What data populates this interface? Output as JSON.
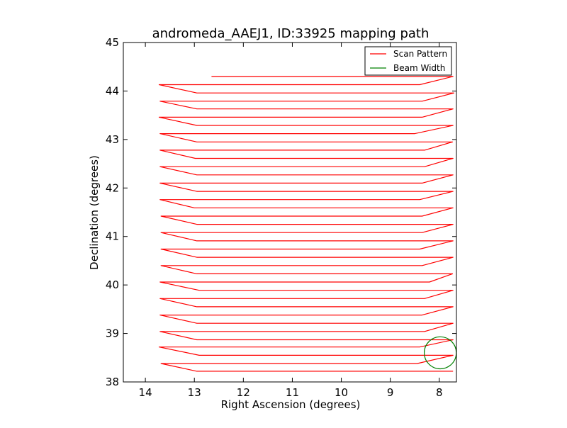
{
  "chart_data": {
    "type": "line",
    "title": "andromeda_AAEJ1, ID:33925 mapping path",
    "xlabel": "Right Ascension (degrees)",
    "ylabel": "Declination (degrees)",
    "xlim": [
      14.45,
      7.65
    ],
    "ylim": [
      38,
      45
    ],
    "x_ticks": [
      "14",
      "13",
      "12",
      "11",
      "10",
      "9",
      "8"
    ],
    "x_tick_values": [
      14,
      13,
      12,
      11,
      10,
      9,
      8
    ],
    "y_ticks": [
      "38",
      "39",
      "40",
      "41",
      "42",
      "43",
      "44",
      "45"
    ],
    "y_tick_values": [
      38,
      39,
      40,
      41,
      42,
      43,
      44,
      45
    ],
    "grid": false,
    "legend_position": "top-right",
    "legend": [
      {
        "label": "Scan Pattern",
        "color": "#ff0000"
      },
      {
        "label": "Beam Width",
        "color": "#008000"
      }
    ],
    "series": [
      {
        "name": "Scan Pattern",
        "color": "#ff0000",
        "points": [
          [
            12.65,
            44.3
          ],
          [
            7.72,
            44.3
          ],
          [
            8.4,
            44.13
          ],
          [
            13.72,
            44.13
          ],
          [
            12.95,
            43.96
          ],
          [
            7.7,
            43.96
          ],
          [
            8.35,
            43.79
          ],
          [
            13.7,
            43.79
          ],
          [
            12.95,
            43.63
          ],
          [
            7.72,
            43.63
          ],
          [
            8.35,
            43.46
          ],
          [
            13.72,
            43.46
          ],
          [
            12.95,
            43.29
          ],
          [
            7.72,
            43.29
          ],
          [
            8.5,
            43.12
          ],
          [
            13.7,
            43.12
          ],
          [
            12.95,
            42.95
          ],
          [
            7.73,
            42.95
          ],
          [
            8.3,
            42.78
          ],
          [
            13.7,
            42.78
          ],
          [
            12.98,
            42.61
          ],
          [
            7.72,
            42.61
          ],
          [
            8.3,
            42.44
          ],
          [
            13.7,
            42.44
          ],
          [
            12.95,
            42.27
          ],
          [
            7.72,
            42.27
          ],
          [
            8.35,
            42.1
          ],
          [
            13.7,
            42.1
          ],
          [
            12.95,
            41.93
          ],
          [
            7.72,
            41.93
          ],
          [
            8.4,
            41.76
          ],
          [
            13.7,
            41.76
          ],
          [
            13.0,
            41.59
          ],
          [
            7.72,
            41.59
          ],
          [
            8.35,
            41.42
          ],
          [
            13.68,
            41.42
          ],
          [
            12.95,
            41.25
          ],
          [
            7.72,
            41.25
          ],
          [
            8.35,
            41.08
          ],
          [
            13.68,
            41.08
          ],
          [
            12.95,
            40.91
          ],
          [
            7.72,
            40.91
          ],
          [
            8.4,
            40.74
          ],
          [
            13.68,
            40.74
          ],
          [
            12.95,
            40.57
          ],
          [
            7.72,
            40.57
          ],
          [
            8.35,
            40.4
          ],
          [
            13.68,
            40.4
          ],
          [
            12.95,
            40.23
          ],
          [
            7.73,
            40.23
          ],
          [
            8.2,
            40.06
          ],
          [
            13.7,
            40.06
          ],
          [
            12.9,
            39.89
          ],
          [
            7.72,
            39.89
          ],
          [
            8.3,
            39.72
          ],
          [
            13.7,
            39.72
          ],
          [
            12.95,
            39.55
          ],
          [
            7.72,
            39.55
          ],
          [
            8.35,
            39.38
          ],
          [
            13.7,
            39.38
          ],
          [
            12.95,
            39.21
          ],
          [
            7.72,
            39.21
          ],
          [
            8.3,
            39.04
          ],
          [
            13.7,
            39.04
          ],
          [
            12.95,
            38.87
          ],
          [
            7.72,
            38.87
          ],
          [
            8.4,
            38.72
          ],
          [
            13.72,
            38.72
          ],
          [
            12.9,
            38.55
          ],
          [
            7.72,
            38.55
          ],
          [
            8.45,
            38.38
          ],
          [
            13.68,
            38.38
          ],
          [
            12.95,
            38.22
          ],
          [
            7.72,
            38.22
          ]
        ]
      },
      {
        "name": "Beam Width",
        "color": "#008000",
        "circle": {
          "center_ra": 7.98,
          "center_dec": 38.6,
          "radius_deg": 0.33
        }
      }
    ]
  }
}
